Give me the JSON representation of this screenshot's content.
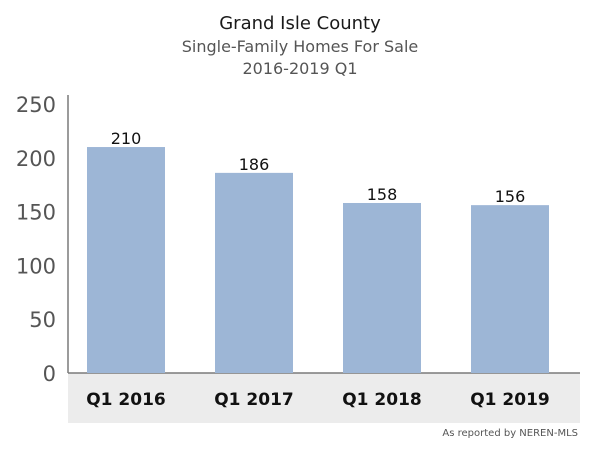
{
  "chart_data": {
    "type": "bar",
    "title": "Grand Isle County",
    "subtitle": "Single-Family Homes For Sale",
    "subtitle2": "2016-2019 Q1",
    "categories": [
      "Q1 2016",
      "Q1 2017",
      "Q1 2018",
      "Q1 2019"
    ],
    "values": [
      210,
      186,
      158,
      156
    ],
    "data_labels": [
      "210",
      "186",
      "158",
      "156"
    ],
    "y_ticks": [
      "0",
      "50",
      "100",
      "150",
      "200",
      "250"
    ],
    "ylim": [
      0,
      250
    ],
    "grid": false,
    "legend": "none",
    "bar_color": "#9db6d6",
    "category_band_color": "#ececec",
    "axis_color": "#7a7a7a"
  },
  "source_note": "As reported by NEREN-MLS"
}
